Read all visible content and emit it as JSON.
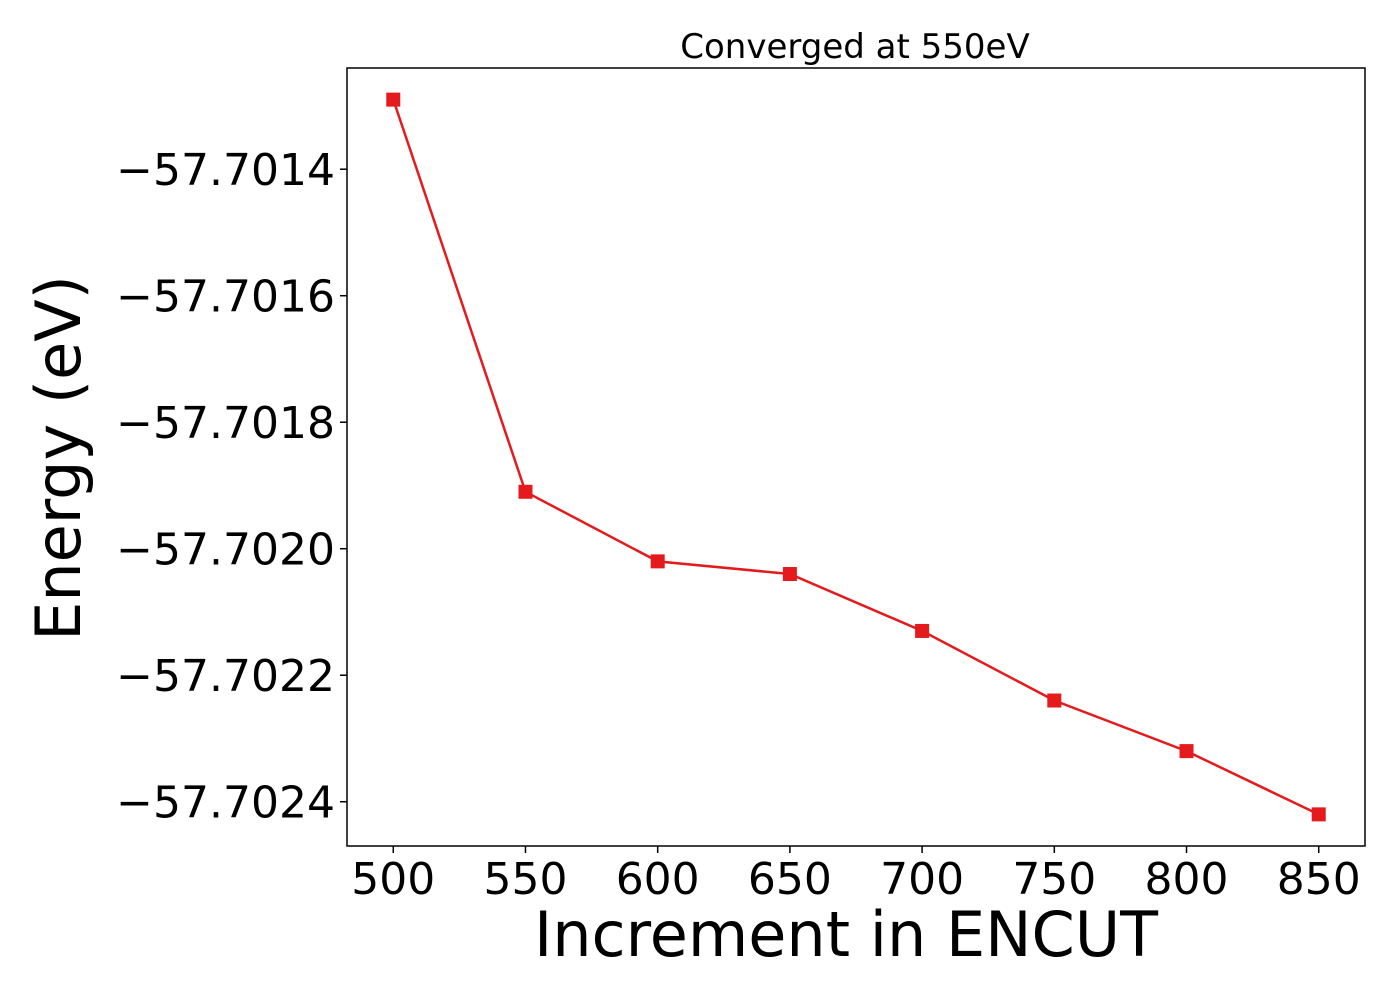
{
  "chart_data": {
    "type": "line",
    "title": "Converged at 550eV",
    "xlabel": "Increment in ENCUT",
    "ylabel": "Energy (eV)",
    "x": [
      500,
      550,
      600,
      650,
      700,
      750,
      800,
      850
    ],
    "series": [
      {
        "values": [
          -57.70129,
          -57.70191,
          -57.70202,
          -57.70204,
          -57.70213,
          -57.70224,
          -57.70232,
          -57.70242
        ],
        "color": "#e41a1c",
        "marker": "square"
      }
    ],
    "xticks": [
      500,
      550,
      600,
      650,
      700,
      750,
      800,
      850
    ],
    "xtick_labels": [
      "500",
      "550",
      "600",
      "650",
      "700",
      "750",
      "800",
      "850"
    ],
    "yticks": [
      -57.7014,
      -57.7016,
      -57.7018,
      -57.702,
      -57.7022,
      -57.7024
    ],
    "ytick_labels": [
      "−57.7014",
      "−57.7016",
      "−57.7018",
      "−57.7020",
      "−57.7022",
      "−57.7024"
    ],
    "xlim": [
      482.5,
      867.5
    ],
    "ylim": [
      -57.70247,
      -57.70124
    ],
    "grid": false,
    "legend": "none"
  }
}
